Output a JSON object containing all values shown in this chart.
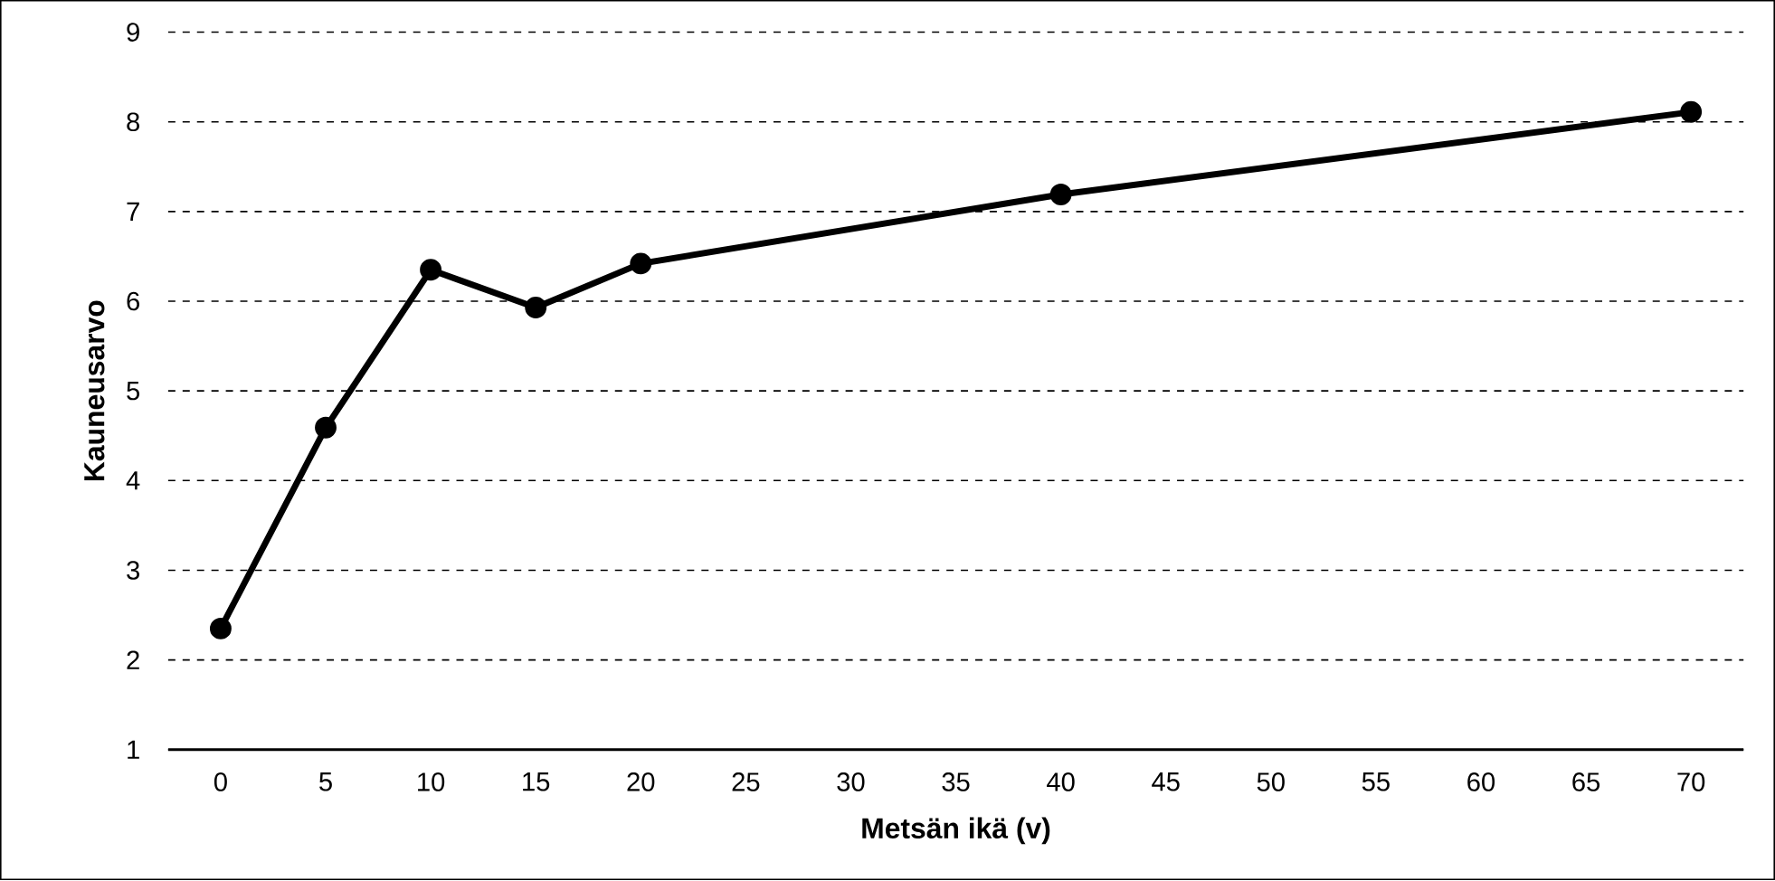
{
  "chart_data": {
    "type": "line",
    "xlabel": "Metsän ikä (v)",
    "ylabel": "Kauneusarvo",
    "x": [
      0,
      5,
      10,
      15,
      20,
      40,
      70
    ],
    "series": [
      {
        "color": "#000000",
        "values": [
          2.35,
          4.59,
          6.35,
          5.93,
          6.42,
          7.19,
          8.11
        ]
      }
    ],
    "xlim": [
      -2.5,
      72.5
    ],
    "xticks": [
      0,
      5,
      10,
      15,
      20,
      25,
      30,
      35,
      40,
      45,
      50,
      55,
      60,
      65,
      70
    ],
    "ylim": [
      1,
      9
    ],
    "yticks": [
      1,
      2,
      3,
      4,
      5,
      6,
      7,
      8,
      9
    ],
    "grid": "y",
    "marker": "circle",
    "line_style": "solid"
  }
}
